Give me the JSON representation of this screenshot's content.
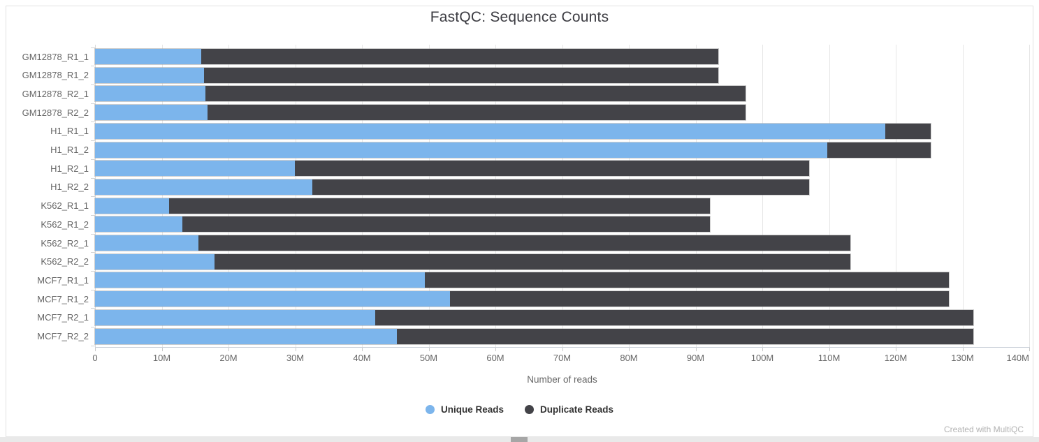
{
  "page": {
    "watermark": "Created with MultiQC"
  },
  "chart_data": {
    "type": "bar",
    "orientation": "horizontal",
    "stacked": true,
    "title": "FastQC: Sequence Counts",
    "xlabel": "Number of reads",
    "value_unit": "millions of reads",
    "xlim": [
      0,
      140
    ],
    "grid": true,
    "legend_position": "bottom",
    "x_ticks": [
      {
        "value": 0,
        "label": "0"
      },
      {
        "value": 10,
        "label": "10M"
      },
      {
        "value": 20,
        "label": "20M"
      },
      {
        "value": 30,
        "label": "30M"
      },
      {
        "value": 40,
        "label": "40M"
      },
      {
        "value": 50,
        "label": "50M"
      },
      {
        "value": 60,
        "label": "60M"
      },
      {
        "value": 70,
        "label": "70M"
      },
      {
        "value": 80,
        "label": "80M"
      },
      {
        "value": 90,
        "label": "90M"
      },
      {
        "value": 100,
        "label": "100M"
      },
      {
        "value": 110,
        "label": "110M"
      },
      {
        "value": 120,
        "label": "120M"
      },
      {
        "value": 130,
        "label": "130M"
      },
      {
        "value": 140,
        "label": "140M"
      }
    ],
    "categories": [
      "GM12878_R1_1",
      "GM12878_R1_2",
      "GM12878_R2_1",
      "GM12878_R2_2",
      "H1_R1_1",
      "H1_R1_2",
      "H1_R2_1",
      "H1_R2_2",
      "K562_R1_1",
      "K562_R1_2",
      "K562_R2_1",
      "K562_R2_2",
      "MCF7_R1_1",
      "MCF7_R1_2",
      "MCF7_R2_1",
      "MCF7_R2_2"
    ],
    "series": [
      {
        "name": "Unique Reads",
        "color": "#7cb5ec",
        "values_millions": [
          15.9,
          16.3,
          16.5,
          16.9,
          118.4,
          109.7,
          29.9,
          32.6,
          11.1,
          13.1,
          15.5,
          17.9,
          49.4,
          53.2,
          42.0,
          45.2
        ]
      },
      {
        "name": "Duplicate Reads",
        "color": "#434348",
        "values_millions": [
          77.5,
          77.1,
          81.0,
          80.6,
          6.8,
          15.5,
          77.1,
          74.4,
          81.0,
          79.0,
          97.7,
          95.3,
          78.6,
          74.8,
          89.6,
          86.4
        ]
      }
    ]
  }
}
